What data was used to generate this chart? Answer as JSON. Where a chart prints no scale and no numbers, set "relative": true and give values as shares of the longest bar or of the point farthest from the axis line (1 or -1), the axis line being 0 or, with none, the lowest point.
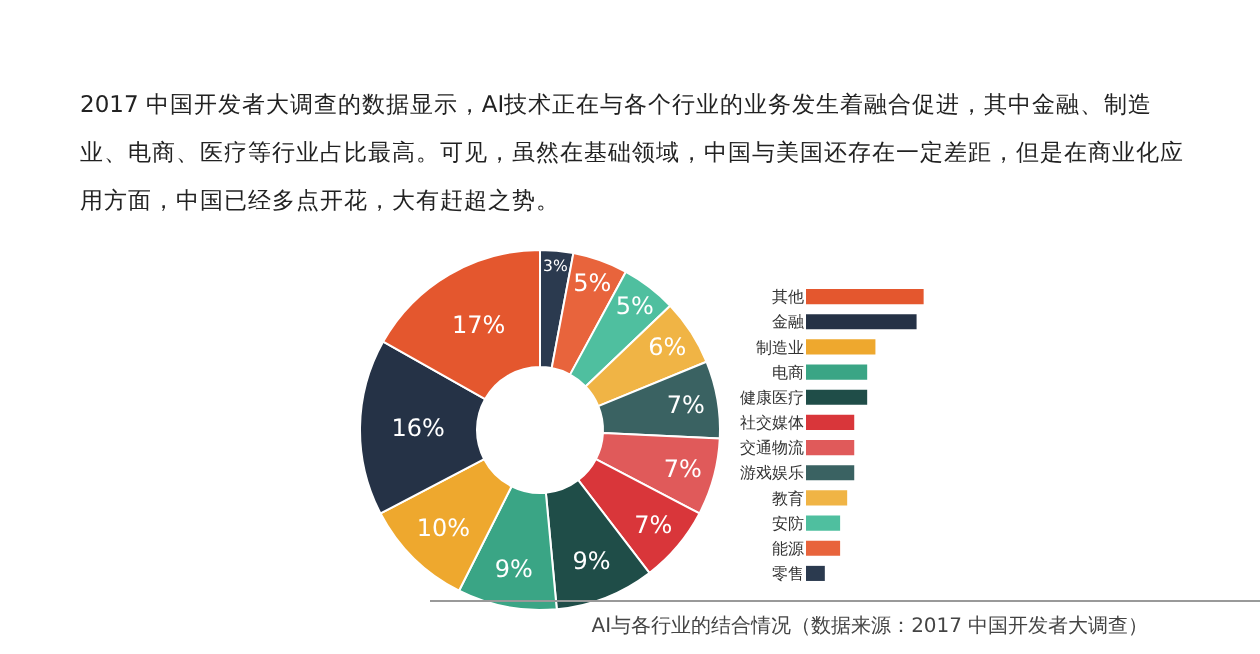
{
  "chart_data": [
    {
      "type": "donut",
      "title": "2017 中国开发者大调查的数据显示，AI技术正在与各个行业的业务发生着融合促进，其中金融、制造业、电商、医疗等行业占比最高。可见，虽然在基础领域，中国与美国还存在一定差距，但是在商业化应用方面，中国已经多点开花，大有赶超之势。",
      "categories": [
        null,
        null,
        null,
        null,
        null,
        null,
        null,
        null,
        null,
        null,
        null,
        null
      ],
      "values": [
        3,
        5,
        5,
        6,
        7,
        7,
        7,
        9,
        9,
        10,
        16,
        17
      ],
      "value_labels": [
        "3%",
        "5%",
        "5%",
        "6%",
        "7%",
        "7%",
        "7%",
        "9%",
        "9%",
        "10%",
        "16%",
        "17%"
      ],
      "colors": [
        "#2b3a4f",
        "#e8643c",
        "#4fbf9f",
        "#f0b445",
        "#3a6262",
        "#e05a5a",
        "#d9363a",
        "#1f4d48",
        "#3aa585",
        "#eea82e",
        "#253246",
        "#e4572e"
      ],
      "annotations": [
        "AI与各行业的结合情况（数据来源：2017 中国开发者大调查）"
      ]
    },
    {
      "type": "bar",
      "orientation": "horizontal",
      "relative": true,
      "categories": [
        "其他",
        "金融",
        "制造业",
        "电商",
        "健康医疗",
        "社交媒体",
        "交通物流",
        "游戏娱乐",
        "教育",
        "安防",
        "能源",
        "零售"
      ],
      "values": [
        1,
        0.94,
        0.59,
        0.52,
        0.52,
        0.41,
        0.41,
        0.41,
        0.35,
        0.29,
        0.29,
        0.16
      ],
      "colors": [
        "#e4572e",
        "#253246",
        "#eea82e",
        "#3aa585",
        "#1f4d48",
        "#d9363a",
        "#e05a5a",
        "#3a6262",
        "#f0b445",
        "#4fbf9f",
        "#e8643c",
        "#2b3a4f"
      ]
    }
  ]
}
